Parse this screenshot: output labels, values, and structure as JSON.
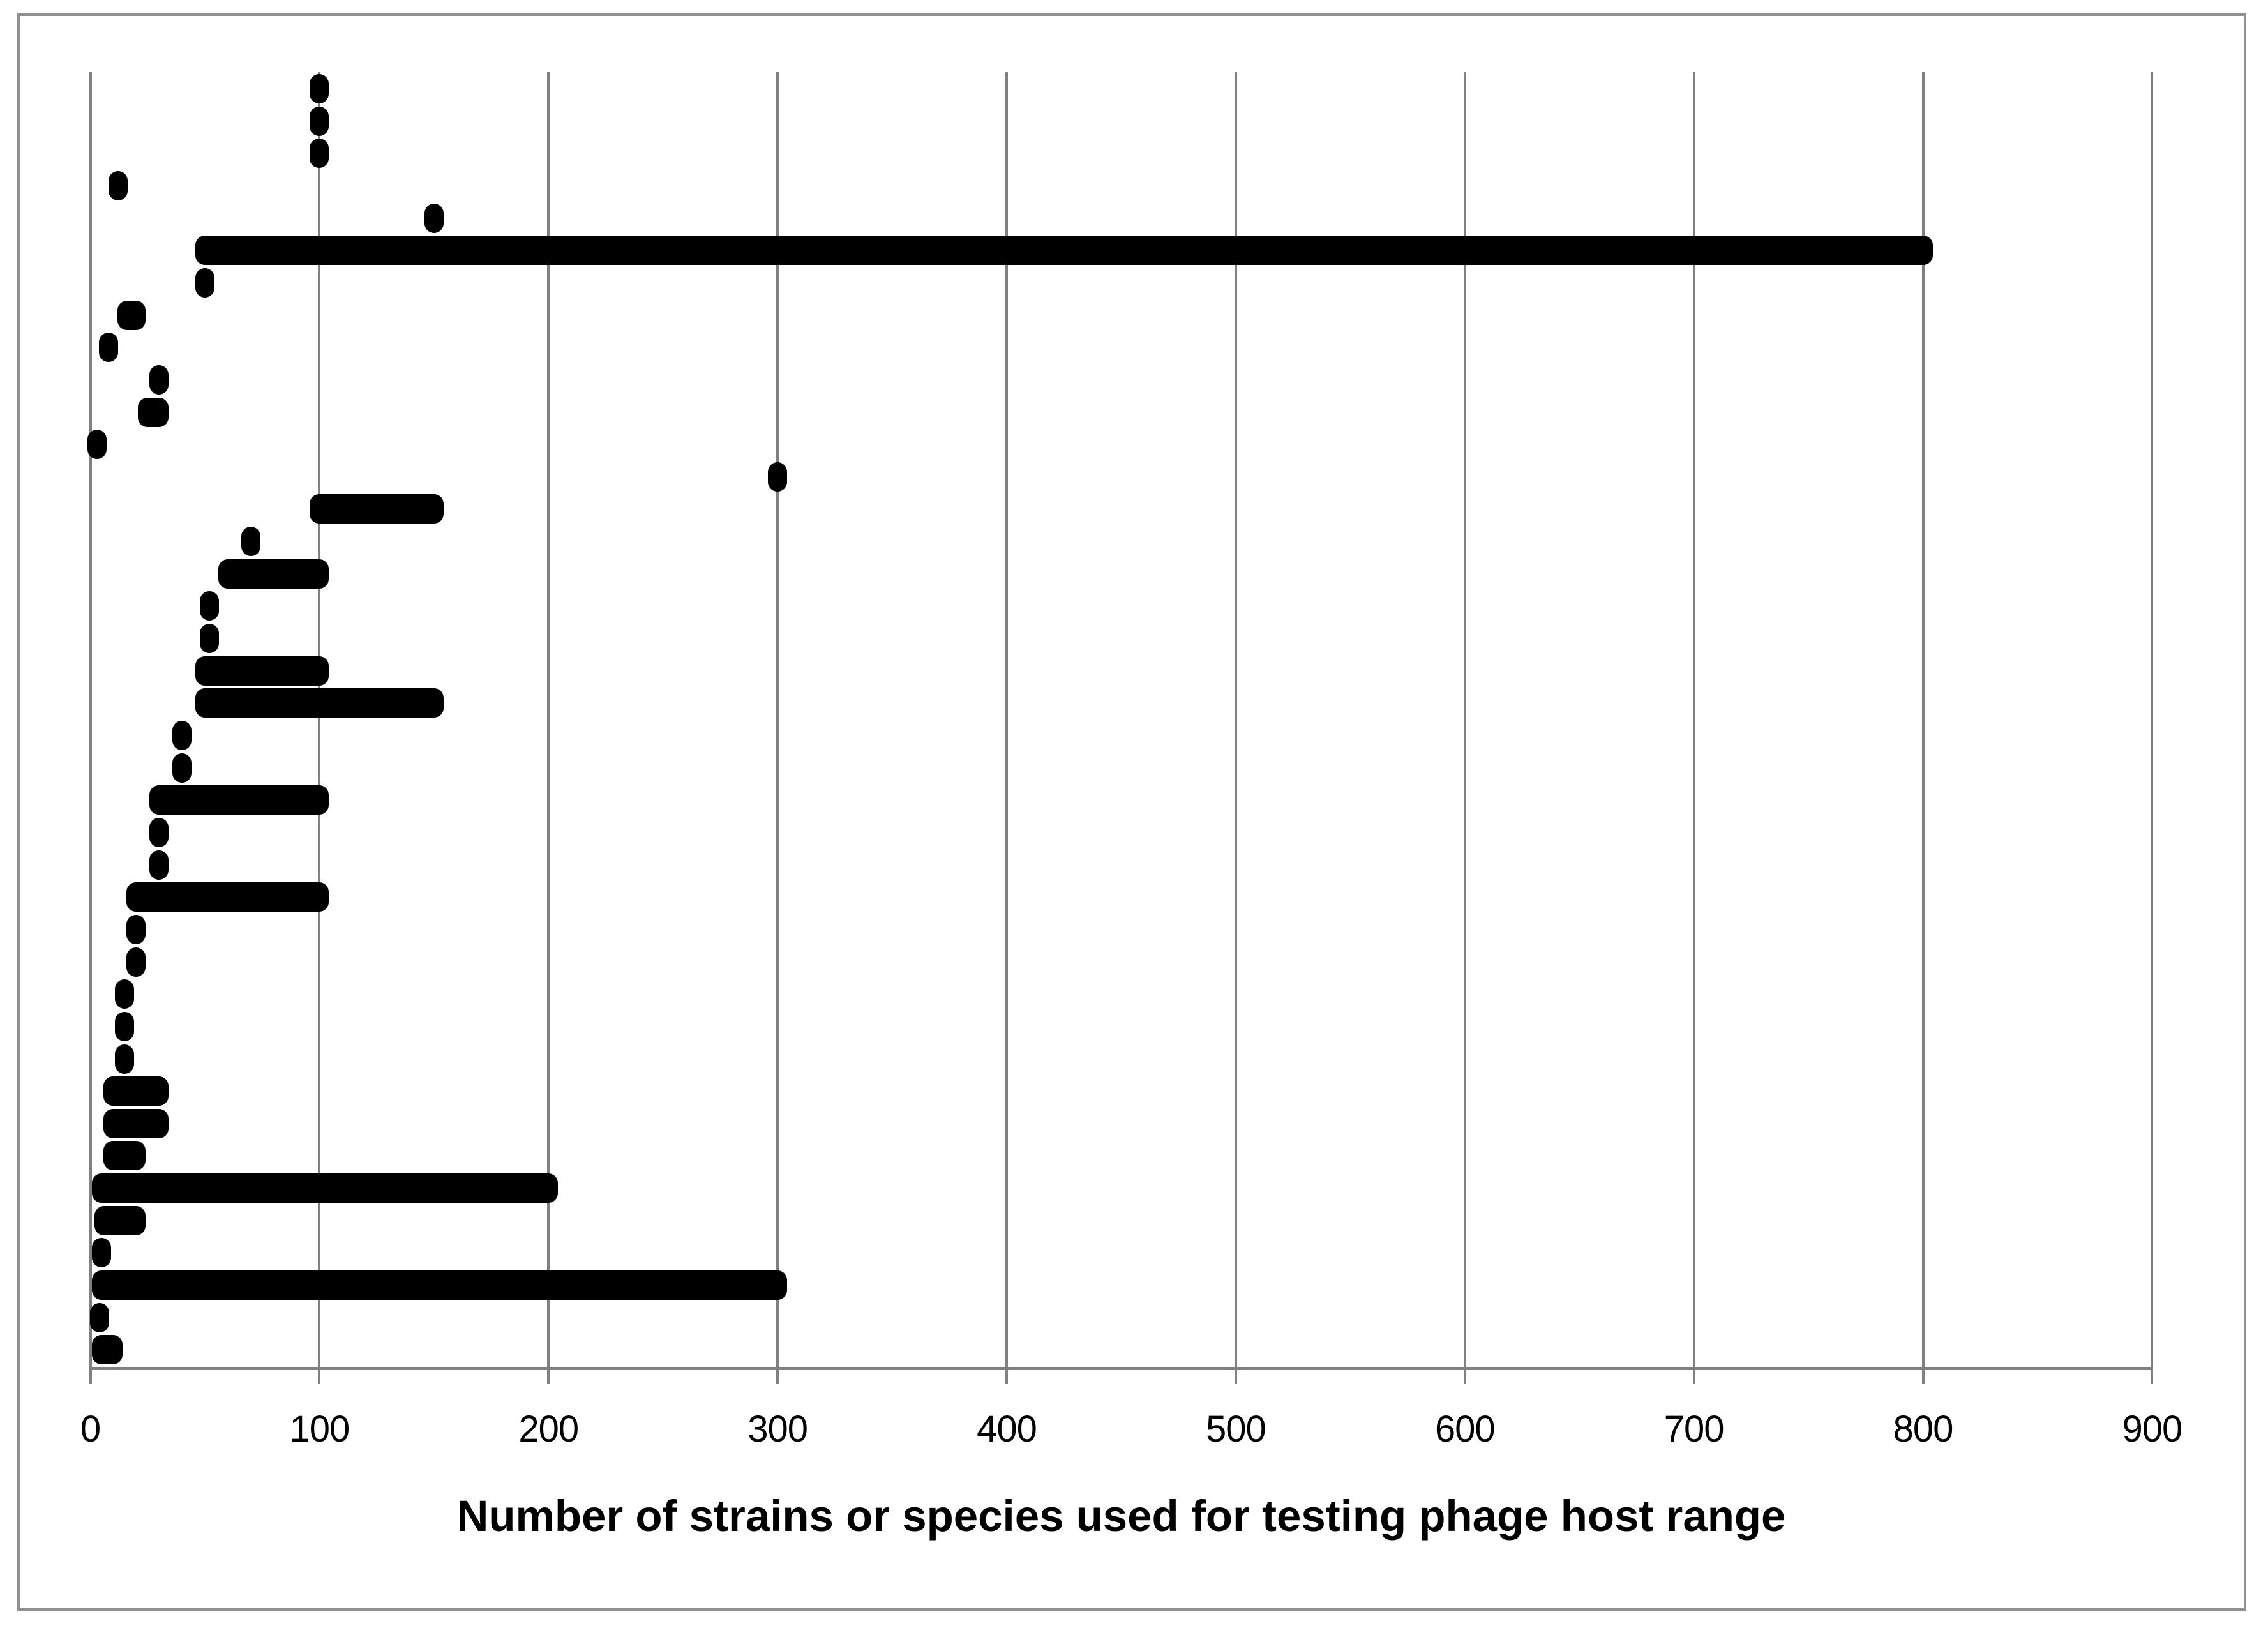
{
  "chart_data": {
    "type": "scatter",
    "variant": "horizontal-range-dot-plot",
    "title": "",
    "xlabel": "Number of strains or species used for testing phage host range",
    "ylabel": "",
    "x_ticks": [
      0,
      100,
      200,
      300,
      400,
      500,
      600,
      700,
      800,
      900
    ],
    "xlim": [
      0,
      940
    ],
    "grid": "vertical gridlines at every 100, grey",
    "legend": "none",
    "marker_color": "#000000",
    "gridline_color": "#808080",
    "frame_color": "#909090",
    "rows": [
      {
        "min": 100,
        "max": 100
      },
      {
        "min": 100,
        "max": 100
      },
      {
        "min": 100,
        "max": 100
      },
      {
        "min": 12,
        "max": 12
      },
      {
        "min": 150,
        "max": 150
      },
      {
        "min": 50,
        "max": 800
      },
      {
        "min": 50,
        "max": 50
      },
      {
        "min": 16,
        "max": 20
      },
      {
        "min": 8,
        "max": 8
      },
      {
        "min": 30,
        "max": 30
      },
      {
        "min": 25,
        "max": 30
      },
      {
        "min": 3,
        "max": 3
      },
      {
        "min": 300,
        "max": 300
      },
      {
        "min": 100,
        "max": 150
      },
      {
        "min": 70,
        "max": 70
      },
      {
        "min": 60,
        "max": 100
      },
      {
        "min": 52,
        "max": 52
      },
      {
        "min": 52,
        "max": 52
      },
      {
        "min": 50,
        "max": 100
      },
      {
        "min": 50,
        "max": 150
      },
      {
        "min": 40,
        "max": 40
      },
      {
        "min": 40,
        "max": 40
      },
      {
        "min": 30,
        "max": 100
      },
      {
        "min": 30,
        "max": 30
      },
      {
        "min": 30,
        "max": 30
      },
      {
        "min": 20,
        "max": 100
      },
      {
        "min": 20,
        "max": 20
      },
      {
        "min": 20,
        "max": 20
      },
      {
        "min": 15,
        "max": 15
      },
      {
        "min": 15,
        "max": 15
      },
      {
        "min": 15,
        "max": 15
      },
      {
        "min": 10,
        "max": 30
      },
      {
        "min": 10,
        "max": 30
      },
      {
        "min": 10,
        "max": 20
      },
      {
        "min": 5,
        "max": 200
      },
      {
        "min": 6,
        "max": 20
      },
      {
        "min": 5,
        "max": 5
      },
      {
        "min": 5,
        "max": 300
      },
      {
        "min": 4,
        "max": 4
      },
      {
        "min": 5,
        "max": 10
      }
    ]
  }
}
